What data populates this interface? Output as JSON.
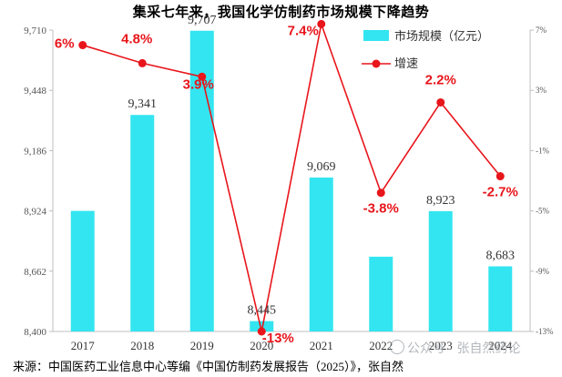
{
  "chart_data": {
    "type": "bar+line",
    "title": "集采七年来，我国化学仿制药市场规模下降趋势",
    "categories": [
      "2017",
      "2018",
      "2019",
      "2020",
      "2021",
      "2022",
      "2023",
      "2024"
    ],
    "series": [
      {
        "name": "市场规模（亿元）",
        "type": "bar",
        "axis": "left",
        "color": "#33e5f0",
        "values": [
          8924,
          9341,
          9707,
          8445,
          9069,
          8725,
          8923,
          8683
        ],
        "labels": [
          "",
          "9,341",
          "9,707",
          "8,445",
          "9,069",
          "",
          "8,923",
          "8,683"
        ]
      },
      {
        "name": "增速",
        "type": "line",
        "axis": "right",
        "color": "#e8151b",
        "values": [
          6.0,
          4.8,
          3.9,
          -13.0,
          7.4,
          -3.8,
          2.2,
          -2.7
        ],
        "labels": [
          "6%",
          "4.8%",
          "3.9%",
          "-13%",
          "7.4%",
          "-3.8%",
          "2.2%",
          "-2.7%"
        ]
      }
    ],
    "y_left": {
      "range": [
        8400,
        9710
      ],
      "ticks": [
        8400,
        8662,
        8924,
        9186,
        9448,
        9710
      ],
      "tick_labels": [
        "8,400",
        "8,662",
        "8,924",
        "9,186",
        "9,448",
        "9,710"
      ]
    },
    "y_right": {
      "range": [
        -13,
        7
      ],
      "ticks": [
        -13,
        -9,
        -5,
        -1,
        3,
        7
      ],
      "tick_labels": [
        "-13%",
        "-9%",
        "-5%",
        "-1%",
        "3%",
        "7%"
      ]
    },
    "legend_position": "top-right",
    "grid": false
  },
  "source": "来源：中国医药工业信息中心等编《中国仿制药发展报告（2025）》，张自然",
  "watermark": "公众号 · 张自然药论"
}
